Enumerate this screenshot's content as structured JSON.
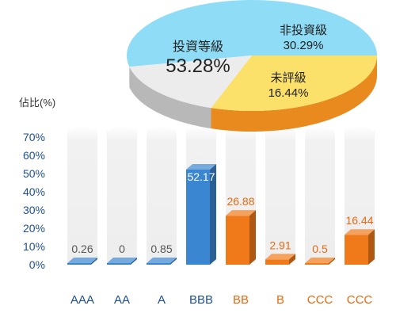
{
  "chart_data": [
    {
      "type": "bar",
      "ylabel": "佔比(%)",
      "ylim": [
        0,
        70
      ],
      "yticks": [
        "0%",
        "10%",
        "20%",
        "30%",
        "40%",
        "50%",
        "60%",
        "70%"
      ],
      "categories": [
        "AAA",
        "AA",
        "A",
        "BBB",
        "BB",
        "B",
        "CCC",
        "CCC"
      ],
      "values": [
        0.26,
        0,
        0.85,
        52.17,
        26.88,
        2.91,
        0.5,
        16.44
      ],
      "value_labels": [
        "0.26",
        "0",
        "0.85",
        "52.17",
        "26.88",
        "2.91",
        "0.5",
        "16.44"
      ],
      "bar_colors": [
        "#3a86d0",
        "#3a86d0",
        "#3a86d0",
        "#3a86d0",
        "#f07a1a",
        "#f07a1a",
        "#f07a1a",
        "#f07a1a"
      ],
      "category_label_colors": [
        "#1f4f8f",
        "#1f4f8f",
        "#1f4f8f",
        "#1f4f8f",
        "#e8690f",
        "#e8690f",
        "#e8690f",
        "#e8690f"
      ],
      "value_label_colors": [
        "#555555",
        "#555555",
        "#555555",
        "#ffffff",
        "#e8690f",
        "#e8690f",
        "#e8690f",
        "#e8690f"
      ],
      "background_column_color": "#f0f0f0",
      "grid": false
    },
    {
      "type": "pie",
      "slices": [
        {
          "label": "投資等級",
          "value": 53.28,
          "value_label": "53.28%",
          "color": "#8fdcf7",
          "side_color": "#3a7fc8"
        },
        {
          "label": "非投資級",
          "value": 30.29,
          "value_label": "30.29%",
          "color": "#fbe06a",
          "side_color": "#e88a1e"
        },
        {
          "label": "未評級",
          "value": 16.44,
          "value_label": "16.44%",
          "color": "#ececec",
          "side_color": "#b8b8b8"
        }
      ]
    }
  ]
}
